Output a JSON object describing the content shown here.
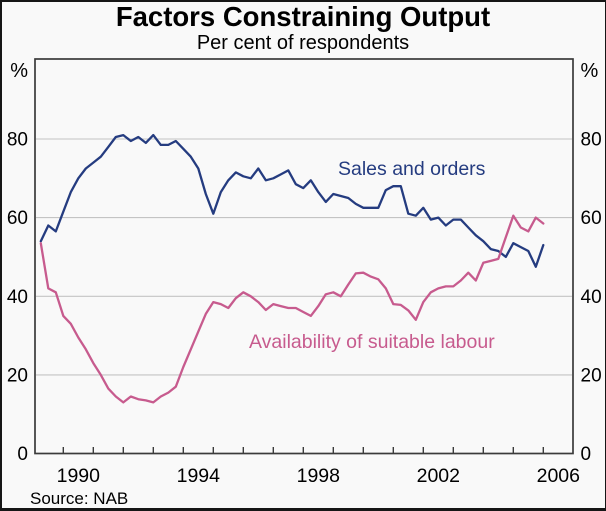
{
  "title": "Factors Constraining Output",
  "subtitle": "Per cent of respondents",
  "source": "Source: NAB",
  "axis": {
    "unit_left": "%",
    "unit_right": "%"
  },
  "colors": {
    "background": "#f9f9f9",
    "axis_frame": "#3b3b3b",
    "grid": "#c4c4c4",
    "text": "#000000",
    "sales_series": "#253c80",
    "labour_series": "#c75b8e"
  },
  "chart_data": {
    "type": "line",
    "title": "Factors Constraining Output",
    "subtitle": "Per cent of respondents",
    "frequency": "quarterly",
    "x_start": "1989Q2",
    "x_end": "2006Q1",
    "xlabel": "",
    "ylabel": "%",
    "ylim": [
      0,
      100
    ],
    "yticks": [
      0,
      20,
      40,
      60,
      80
    ],
    "xtick_label_years": [
      1990,
      1994,
      1998,
      2002,
      2006
    ],
    "xtick_minor_every_years": 1,
    "grid": "horizontal",
    "legend_position": "in-plot-labels",
    "series": [
      {
        "name": "Sales and orders",
        "color": "#253c80",
        "values": [
          54,
          58,
          56.5,
          61.5,
          66.5,
          70,
          72.5,
          74,
          75.5,
          78,
          80.5,
          81,
          79.5,
          80.5,
          79,
          81,
          78.5,
          78.5,
          79.5,
          77.5,
          75.5,
          72.5,
          66,
          61,
          66.5,
          69.5,
          71.5,
          70.5,
          70,
          72.5,
          69.5,
          70,
          71,
          72,
          68.5,
          67.5,
          69.5,
          66.5,
          64,
          66,
          65.5,
          65,
          63.5,
          62.5,
          62.5,
          62.5,
          67,
          68,
          68,
          61,
          60.5,
          62.5,
          59.5,
          60,
          58,
          59.5,
          59.5,
          57.5,
          55.5,
          54,
          52,
          51.5,
          50,
          53.5,
          52.5,
          51.5,
          47.5,
          53
        ]
      },
      {
        "name": "Availability of suitable labour",
        "color": "#c75b8e",
        "values": [
          53.5,
          42,
          41,
          35,
          33,
          29.5,
          26.5,
          23,
          20,
          16.5,
          14.5,
          13,
          14.5,
          13.8,
          13.5,
          13,
          14.5,
          15.5,
          17,
          22,
          26.5,
          31,
          35.5,
          38.5,
          38,
          37,
          39.5,
          41,
          40,
          38.5,
          36.5,
          38,
          37.5,
          37,
          37,
          36,
          35,
          37.5,
          40.5,
          41,
          40,
          43,
          45.8,
          46,
          45,
          44.3,
          42,
          38,
          37.8,
          36.4,
          34,
          38.5,
          41,
          42,
          42.5,
          42.5,
          44,
          46,
          44,
          48.5,
          49,
          49.5,
          55,
          60.5,
          57.5,
          56.5,
          60,
          58.5
        ]
      }
    ]
  }
}
